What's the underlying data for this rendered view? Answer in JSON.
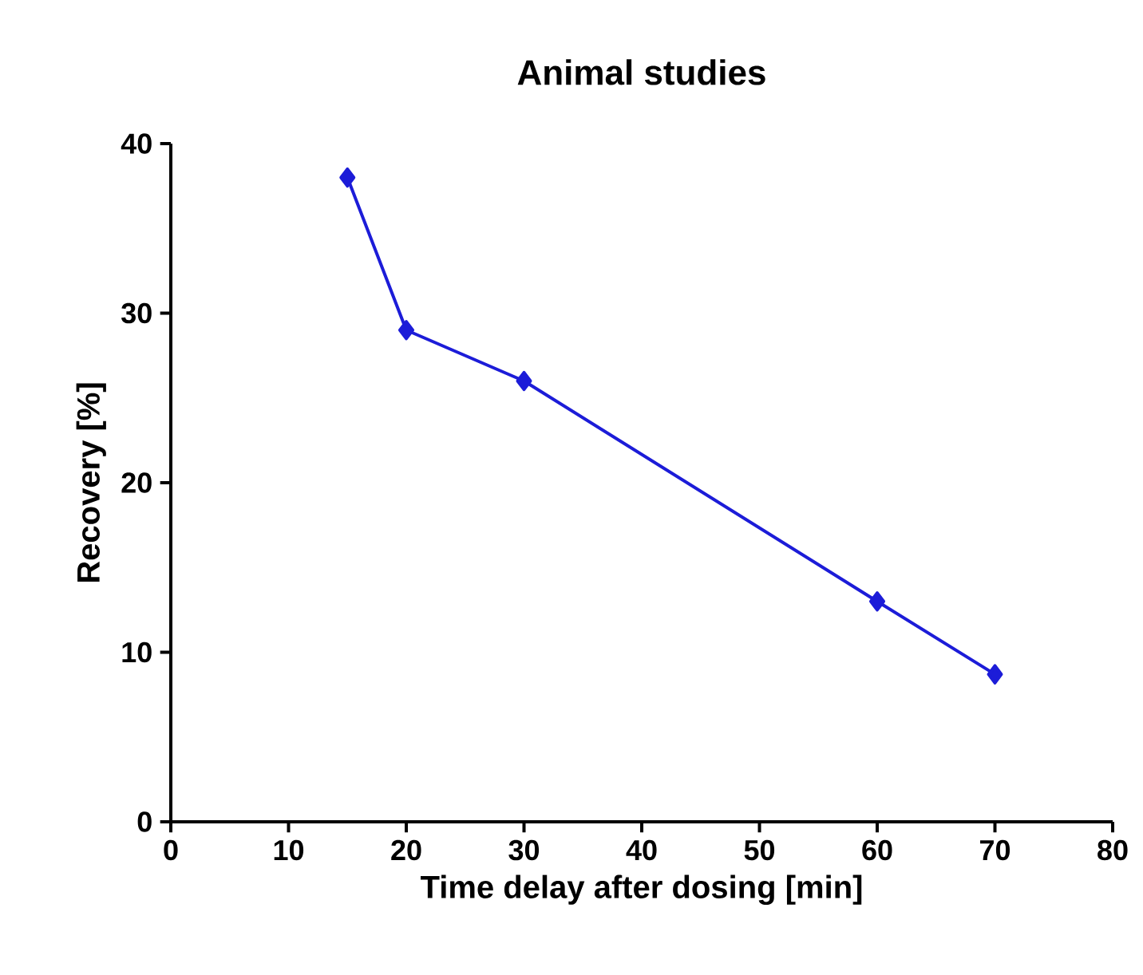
{
  "chart_data": {
    "type": "line",
    "title": "Animal studies",
    "xlabel": "Time delay after dosing [min]",
    "ylabel": "Recovery [%]",
    "x": [
      15,
      20,
      30,
      60,
      70
    ],
    "series": [
      {
        "color": "#1c1cd8",
        "values": [
          38,
          29,
          26,
          13,
          8.7
        ]
      }
    ],
    "xlim": [
      0,
      80
    ],
    "ylim": [
      0,
      40
    ],
    "xticks": [
      0,
      10,
      20,
      30,
      40,
      50,
      60,
      70,
      80
    ],
    "yticks": [
      0,
      10,
      20,
      30,
      40
    ],
    "grid": false,
    "marker": "diamond",
    "line_style": "solid"
  }
}
